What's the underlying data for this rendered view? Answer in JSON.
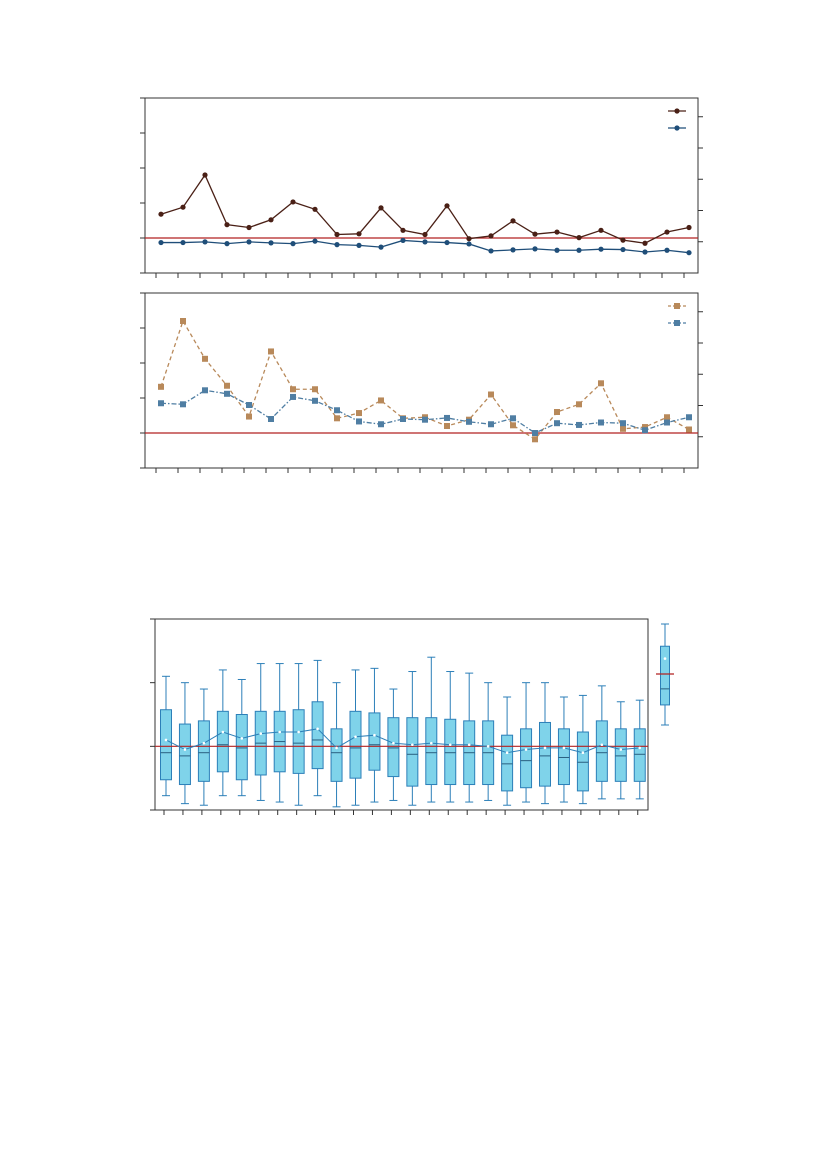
{
  "colors": {
    "dark_brown": "#4a2016",
    "navy": "#1f4e79",
    "tan": "#b8895a",
    "steel_blue": "#4f7ea3",
    "reference_line": "#b22222",
    "box_fill": "#7fd3ea",
    "box_edge": "#2c7fb8",
    "axis": "#333333"
  },
  "chart_data": [
    {
      "type": "line",
      "title": "",
      "xlabel": "",
      "ylabel": "",
      "ylim": [
        -1,
        4
      ],
      "y2lim": [
        -1,
        4.6
      ],
      "reference_y": 0,
      "x": [
        1,
        2,
        3,
        4,
        5,
        6,
        7,
        8,
        9,
        10,
        11,
        12,
        13,
        14,
        15,
        16,
        17,
        18,
        19,
        20,
        21,
        22,
        23,
        24,
        25
      ],
      "grid": false,
      "legend": "top-right",
      "series": [
        {
          "axis": "left",
          "color": "dark_brown",
          "marker": "circle",
          "dash": "solid",
          "values": [
            0.68,
            0.88,
            1.8,
            0.38,
            0.3,
            0.52,
            1.03,
            0.82,
            0.1,
            0.12,
            0.86,
            0.22,
            0.1,
            0.92,
            -0.02,
            0.06,
            0.49,
            0.11,
            0.17,
            0.01,
            0.22,
            -0.06,
            -0.15,
            0.17,
            0.3
          ]
        },
        {
          "axis": "left",
          "color": "navy",
          "marker": "circle",
          "dash": "solid",
          "values": [
            -0.13,
            -0.13,
            -0.11,
            -0.16,
            -0.11,
            -0.14,
            -0.16,
            -0.09,
            -0.19,
            -0.21,
            -0.26,
            -0.07,
            -0.11,
            -0.13,
            -0.17,
            -0.37,
            -0.34,
            -0.31,
            -0.35,
            -0.35,
            -0.32,
            -0.33,
            -0.4,
            -0.35,
            -0.42
          ]
        }
      ]
    },
    {
      "type": "line",
      "title": "",
      "xlabel": "",
      "ylabel": "",
      "ylim": [
        -1,
        4
      ],
      "y2lim": [
        -1,
        4.6
      ],
      "reference_y": 0,
      "x": [
        1,
        2,
        3,
        4,
        5,
        6,
        7,
        8,
        9,
        10,
        11,
        12,
        13,
        14,
        15,
        16,
        17,
        18,
        19,
        20,
        21,
        22,
        23,
        24,
        25
      ],
      "grid": false,
      "legend": "top-right",
      "series": [
        {
          "axis": "left",
          "color": "tan",
          "marker": "square",
          "dash": "dashed",
          "values": [
            1.32,
            3.2,
            2.12,
            1.35,
            0.47,
            2.33,
            1.25,
            1.25,
            0.42,
            0.57,
            0.93,
            0.42,
            0.45,
            0.2,
            0.38,
            1.1,
            0.22,
            -0.18,
            0.6,
            0.82,
            1.42,
            0.12,
            0.17,
            0.45,
            0.1
          ]
        },
        {
          "axis": "left",
          "color": "steel_blue",
          "marker": "square",
          "dash": "dashdot",
          "values": [
            0.85,
            0.82,
            1.22,
            1.12,
            0.8,
            0.4,
            1.03,
            0.92,
            0.65,
            0.33,
            0.25,
            0.4,
            0.38,
            0.43,
            0.32,
            0.25,
            0.42,
            0.0,
            0.28,
            0.23,
            0.3,
            0.28,
            0.08,
            0.3,
            0.45
          ]
        }
      ]
    },
    {
      "type": "box",
      "title": "",
      "xlabel": "",
      "ylabel": "",
      "ylim": [
        -2,
        4
      ],
      "reference_y": 0,
      "grid": false,
      "boxes": [
        {
          "whislo": -1.55,
          "q1": -1.05,
          "med": -0.2,
          "q3": 1.15,
          "whishi": 2.2,
          "mean": 0.2
        },
        {
          "whislo": -1.8,
          "q1": -1.2,
          "med": -0.3,
          "q3": 0.7,
          "whishi": 2.0,
          "mean": -0.1
        },
        {
          "whislo": -1.85,
          "q1": -1.1,
          "med": -0.2,
          "q3": 0.8,
          "whishi": 1.8,
          "mean": 0.1
        },
        {
          "whislo": -1.55,
          "q1": -0.8,
          "med": 0.05,
          "q3": 1.1,
          "whishi": 2.4,
          "mean": 0.45
        },
        {
          "whislo": -1.55,
          "q1": -1.05,
          "med": -0.05,
          "q3": 1.0,
          "whishi": 2.1,
          "mean": 0.25
        },
        {
          "whislo": -1.7,
          "q1": -0.9,
          "med": 0.1,
          "q3": 1.1,
          "whishi": 2.6,
          "mean": 0.4
        },
        {
          "whislo": -1.75,
          "q1": -0.8,
          "med": 0.15,
          "q3": 1.1,
          "whishi": 2.6,
          "mean": 0.45
        },
        {
          "whislo": -1.85,
          "q1": -0.85,
          "med": 0.1,
          "q3": 1.15,
          "whishi": 2.6,
          "mean": 0.45
        },
        {
          "whislo": -1.55,
          "q1": -0.7,
          "med": 0.2,
          "q3": 1.4,
          "whishi": 2.7,
          "mean": 0.55
        },
        {
          "whislo": -1.9,
          "q1": -1.1,
          "med": -0.2,
          "q3": 0.55,
          "whishi": 2.0,
          "mean": -0.05
        },
        {
          "whislo": -1.85,
          "q1": -1.0,
          "med": -0.05,
          "q3": 1.1,
          "whishi": 2.4,
          "mean": 0.3
        },
        {
          "whislo": -1.75,
          "q1": -0.75,
          "med": 0.05,
          "q3": 1.05,
          "whishi": 2.45,
          "mean": 0.35
        },
        {
          "whislo": -1.7,
          "q1": -0.95,
          "med": -0.05,
          "q3": 0.9,
          "whishi": 1.8,
          "mean": 0.1
        },
        {
          "whislo": -1.85,
          "q1": -1.25,
          "med": -0.25,
          "q3": 0.9,
          "whishi": 2.35,
          "mean": 0.05
        },
        {
          "whislo": -1.75,
          "q1": -1.2,
          "med": -0.2,
          "q3": 0.9,
          "whishi": 2.8,
          "mean": 0.1
        },
        {
          "whislo": -1.75,
          "q1": -1.2,
          "med": -0.2,
          "q3": 0.85,
          "whishi": 2.35,
          "mean": 0.05
        },
        {
          "whislo": -1.75,
          "q1": -1.2,
          "med": -0.2,
          "q3": 0.8,
          "whishi": 2.3,
          "mean": 0.05
        },
        {
          "whislo": -1.7,
          "q1": -1.2,
          "med": -0.2,
          "q3": 0.8,
          "whishi": 2.0,
          "mean": 0.0
        },
        {
          "whislo": -1.85,
          "q1": -1.4,
          "med": -0.55,
          "q3": 0.35,
          "whishi": 1.55,
          "mean": -0.2
        },
        {
          "whislo": -1.75,
          "q1": -1.3,
          "med": -0.45,
          "q3": 0.55,
          "whishi": 2.0,
          "mean": -0.1
        },
        {
          "whislo": -1.8,
          "q1": -1.25,
          "med": -0.3,
          "q3": 0.75,
          "whishi": 2.0,
          "mean": -0.05
        },
        {
          "whislo": -1.75,
          "q1": -1.2,
          "med": -0.35,
          "q3": 0.55,
          "whishi": 1.55,
          "mean": -0.05
        },
        {
          "whislo": -1.8,
          "q1": -1.4,
          "med": -0.5,
          "q3": 0.45,
          "whishi": 1.6,
          "mean": -0.2
        },
        {
          "whislo": -1.65,
          "q1": -1.1,
          "med": -0.2,
          "q3": 0.8,
          "whishi": 1.9,
          "mean": 0.05
        },
        {
          "whislo": -1.65,
          "q1": -1.1,
          "med": -0.3,
          "q3": 0.55,
          "whishi": 1.4,
          "mean": -0.1
        },
        {
          "whislo": -1.65,
          "q1": -1.1,
          "med": -0.25,
          "q3": 0.55,
          "whishi": 1.45,
          "mean": -0.05
        }
      ],
      "side_box": {
        "whislo": 0.65,
        "q1": 1.3,
        "med": 1.82,
        "q3": 3.2,
        "whishi": 3.92,
        "mean": 2.8,
        "reference": 2.3
      }
    }
  ]
}
